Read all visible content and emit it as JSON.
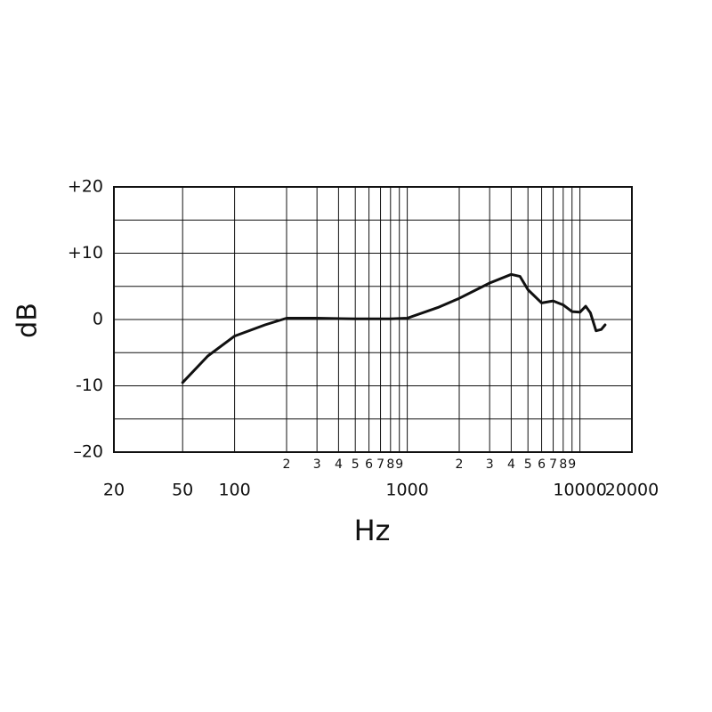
{
  "chart_data": {
    "type": "line",
    "xlabel": "Hz",
    "ylabel": "dB",
    "xscale": "log",
    "xlim": [
      20,
      20000
    ],
    "ylim": [
      -20,
      20
    ],
    "xticks": [
      20,
      50,
      100,
      1000,
      10000,
      20000
    ],
    "xminor_ticks": [
      {
        "value": 200,
        "label": "2"
      },
      {
        "value": 300,
        "label": "3"
      },
      {
        "value": 400,
        "label": "4"
      },
      {
        "value": 500,
        "label": "5"
      },
      {
        "value": 600,
        "label": "6"
      },
      {
        "value": 700,
        "label": "7"
      },
      {
        "value": 800,
        "label": "8"
      },
      {
        "value": 900,
        "label": "9"
      },
      {
        "value": 2000,
        "label": "2"
      },
      {
        "value": 3000,
        "label": "3"
      },
      {
        "value": 4000,
        "label": "4"
      },
      {
        "value": 5000,
        "label": "5"
      },
      {
        "value": 6000,
        "label": "6"
      },
      {
        "value": 7000,
        "label": "7"
      },
      {
        "value": 8000,
        "label": "8"
      },
      {
        "value": 9000,
        "label": "9"
      }
    ],
    "yticks": [
      {
        "value": 20,
        "label": "+20"
      },
      {
        "value": 10,
        "label": "+10"
      },
      0,
      -10,
      {
        "value": -20,
        "label": "–20"
      }
    ],
    "yminor_grid": [
      15,
      5,
      -5,
      -15
    ],
    "grid": true,
    "series": [
      {
        "color": "#111111",
        "x": [
          50,
          70,
          100,
          150,
          200,
          300,
          500,
          800,
          1000,
          1500,
          2000,
          3000,
          4000,
          4500,
          5000,
          6000,
          7000,
          8000,
          9000,
          10000,
          10800,
          11500,
          12400,
          13300,
          14000
        ],
        "values": [
          -9.5,
          -5.5,
          -2.5,
          -0.8,
          0.2,
          0.2,
          0.1,
          0.1,
          0.2,
          1.8,
          3.2,
          5.5,
          6.8,
          6.5,
          4.5,
          2.5,
          2.8,
          2.2,
          1.2,
          1.1,
          2.0,
          1.0,
          -1.7,
          -1.5,
          -0.8
        ]
      }
    ]
  }
}
